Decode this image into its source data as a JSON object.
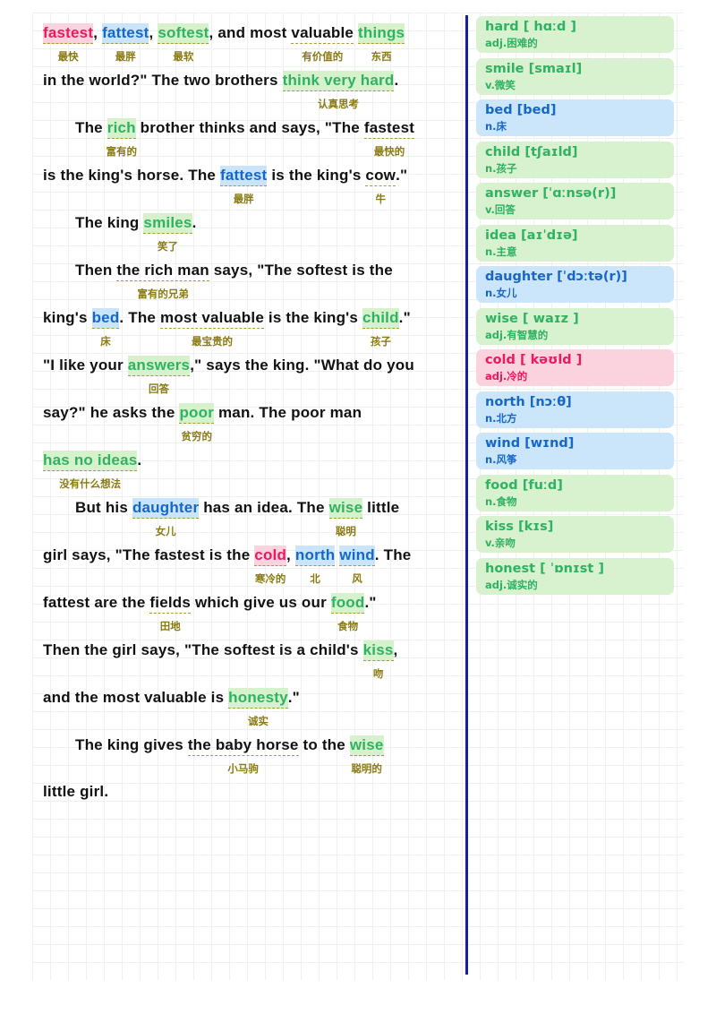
{
  "colors": {
    "green": "#2fb262",
    "blue": "#1667c8",
    "pink": "#ea1a5c",
    "gloss": "#8a7a12",
    "divider": "#1c1c9c"
  },
  "lines": [
    {
      "indent": false,
      "segs": [
        {
          "t": "fastest",
          "c": "pink",
          "g": "最快"
        },
        {
          "t": ", "
        },
        {
          "t": "fattest",
          "c": "blue",
          "g": "最胖"
        },
        {
          "t": ", "
        },
        {
          "t": "softest",
          "c": "green",
          "g": "最软"
        },
        {
          "t": ", and most "
        },
        {
          "t": "valuable",
          "c": "u",
          "g": "有价值的"
        },
        {
          "t": " "
        },
        {
          "t": "things",
          "c": "green",
          "g": "东西"
        }
      ]
    },
    {
      "indent": false,
      "segs": [
        {
          "t": "in the world?\" The two brothers "
        },
        {
          "t": "think very hard",
          "c": "green",
          "g": "认真思考"
        },
        {
          "t": "."
        }
      ]
    },
    {
      "indent": true,
      "segs": [
        {
          "t": "The "
        },
        {
          "t": "rich",
          "c": "green",
          "g": "富有的"
        },
        {
          "t": " brother thinks and says, \"The "
        },
        {
          "t": "fastest",
          "c": "u",
          "g": "最快的"
        }
      ]
    },
    {
      "indent": false,
      "segs": [
        {
          "t": "is the king's horse. The "
        },
        {
          "t": "fattest",
          "c": "blue",
          "g": "最胖"
        },
        {
          "t": " is the king's "
        },
        {
          "t": "cow",
          "c": "u",
          "g": "牛"
        },
        {
          "t": ".\""
        }
      ]
    },
    {
      "indent": true,
      "segs": [
        {
          "t": "The king "
        },
        {
          "t": "smiles",
          "c": "green",
          "g": "笑了"
        },
        {
          "t": "."
        }
      ]
    },
    {
      "indent": true,
      "segs": [
        {
          "t": "Then "
        },
        {
          "t": "the rich man",
          "c": "u",
          "g": "富有的兄弟"
        },
        {
          "t": " says, \"The softest is the"
        }
      ]
    },
    {
      "indent": false,
      "segs": [
        {
          "t": "king's "
        },
        {
          "t": "bed",
          "c": "blue",
          "g": "床"
        },
        {
          "t": ". The "
        },
        {
          "t": "most valuable",
          "c": "u",
          "g": "最宝贵的"
        },
        {
          "t": " is the king's "
        },
        {
          "t": "child",
          "c": "green",
          "g": "孩子"
        },
        {
          "t": ".\""
        }
      ]
    },
    {
      "indent": false,
      "segs": [
        {
          "t": "\"I like your "
        },
        {
          "t": "answers",
          "c": "green",
          "g": "回答"
        },
        {
          "t": ",\" says the king. \"What do you"
        }
      ]
    },
    {
      "indent": false,
      "segs": [
        {
          "t": "say?\" he asks the "
        },
        {
          "t": "poor",
          "c": "green",
          "g": "贫穷的"
        },
        {
          "t": " man. The poor man"
        }
      ]
    },
    {
      "indent": false,
      "segs": [
        {
          "t": "has no ideas",
          "c": "green",
          "g": "没有什么想法"
        },
        {
          "t": "."
        }
      ]
    },
    {
      "indent": true,
      "segs": [
        {
          "t": "But his "
        },
        {
          "t": "daughter",
          "c": "blue",
          "g": "女儿"
        },
        {
          "t": " has an idea. The "
        },
        {
          "t": "wise",
          "c": "green",
          "g": "聪明"
        },
        {
          "t": " little"
        }
      ]
    },
    {
      "indent": false,
      "segs": [
        {
          "t": "girl says, \"The fastest is the "
        },
        {
          "t": "cold",
          "c": "pink",
          "g": "寒冷的"
        },
        {
          "t": ", "
        },
        {
          "t": "north",
          "c": "blue",
          "g": "北"
        },
        {
          "t": " "
        },
        {
          "t": "wind",
          "c": "blue",
          "g": "风"
        },
        {
          "t": ". The"
        }
      ]
    },
    {
      "indent": false,
      "segs": [
        {
          "t": "fattest are the "
        },
        {
          "t": "fields",
          "c": "u",
          "g": "田地"
        },
        {
          "t": " which give us our "
        },
        {
          "t": "food",
          "c": "green",
          "g": "食物"
        },
        {
          "t": ".\""
        }
      ]
    },
    {
      "indent": false,
      "segs": [
        {
          "t": "Then the girl says, \"The softest is a child's "
        },
        {
          "t": "kiss",
          "c": "green",
          "g": "吻"
        },
        {
          "t": ","
        }
      ]
    },
    {
      "indent": false,
      "segs": [
        {
          "t": "and the most valuable is "
        },
        {
          "t": "honesty",
          "c": "green",
          "g": "诚实"
        },
        {
          "t": ".\""
        }
      ]
    },
    {
      "indent": true,
      "segs": [
        {
          "t": "The king gives "
        },
        {
          "t": "the baby horse",
          "c": "u",
          "g": "小马驹"
        },
        {
          "t": " to the "
        },
        {
          "t": "wise",
          "c": "green",
          "g": "聪明的"
        }
      ]
    },
    {
      "indent": false,
      "segs": [
        {
          "t": "little girl."
        }
      ]
    }
  ],
  "vocab": [
    {
      "word": "hard",
      "ipa": "[ hɑːd ]",
      "meaning": "adj.困难的",
      "c": "green"
    },
    {
      "word": "smile",
      "ipa": "[smaɪl]",
      "meaning": "v.微笑",
      "c": "green"
    },
    {
      "word": "bed",
      "ipa": "[bed]",
      "meaning": "n.床",
      "c": "blue"
    },
    {
      "word": "child",
      "ipa": "[tʃaɪld]",
      "meaning": "n.孩子",
      "c": "green"
    },
    {
      "word": "answer",
      "ipa": "[ˈɑːnsə(r)]",
      "meaning": "v.回答",
      "c": "green"
    },
    {
      "word": "idea",
      "ipa": "[aɪˈdɪə]",
      "meaning": "n.主意",
      "c": "green"
    },
    {
      "word": "daughter",
      "ipa": "[ˈdɔːtə(r)]",
      "meaning": "n.女儿",
      "c": "blue"
    },
    {
      "word": "wise",
      "ipa": "[ waɪz ]",
      "meaning": "adj.有智慧的",
      "c": "green"
    },
    {
      "word": "cold",
      "ipa": "[ kəʊld ]",
      "meaning": "adj.冷的",
      "c": "pink"
    },
    {
      "word": "north",
      "ipa": "[nɔːθ]",
      "meaning": "n.北方",
      "c": "blue"
    },
    {
      "word": "wind",
      "ipa": "[wɪnd]",
      "meaning": "n.风筝",
      "c": "blue"
    },
    {
      "word": "food",
      "ipa": "[fuːd]",
      "meaning": "n.食物",
      "c": "green"
    },
    {
      "word": "kiss",
      "ipa": "[kɪs]",
      "meaning": "v.亲吻",
      "c": "green"
    },
    {
      "word": "honest",
      "ipa": "[ ˈɒnɪst ]",
      "meaning": "adj.诚实的",
      "c": "green"
    }
  ]
}
